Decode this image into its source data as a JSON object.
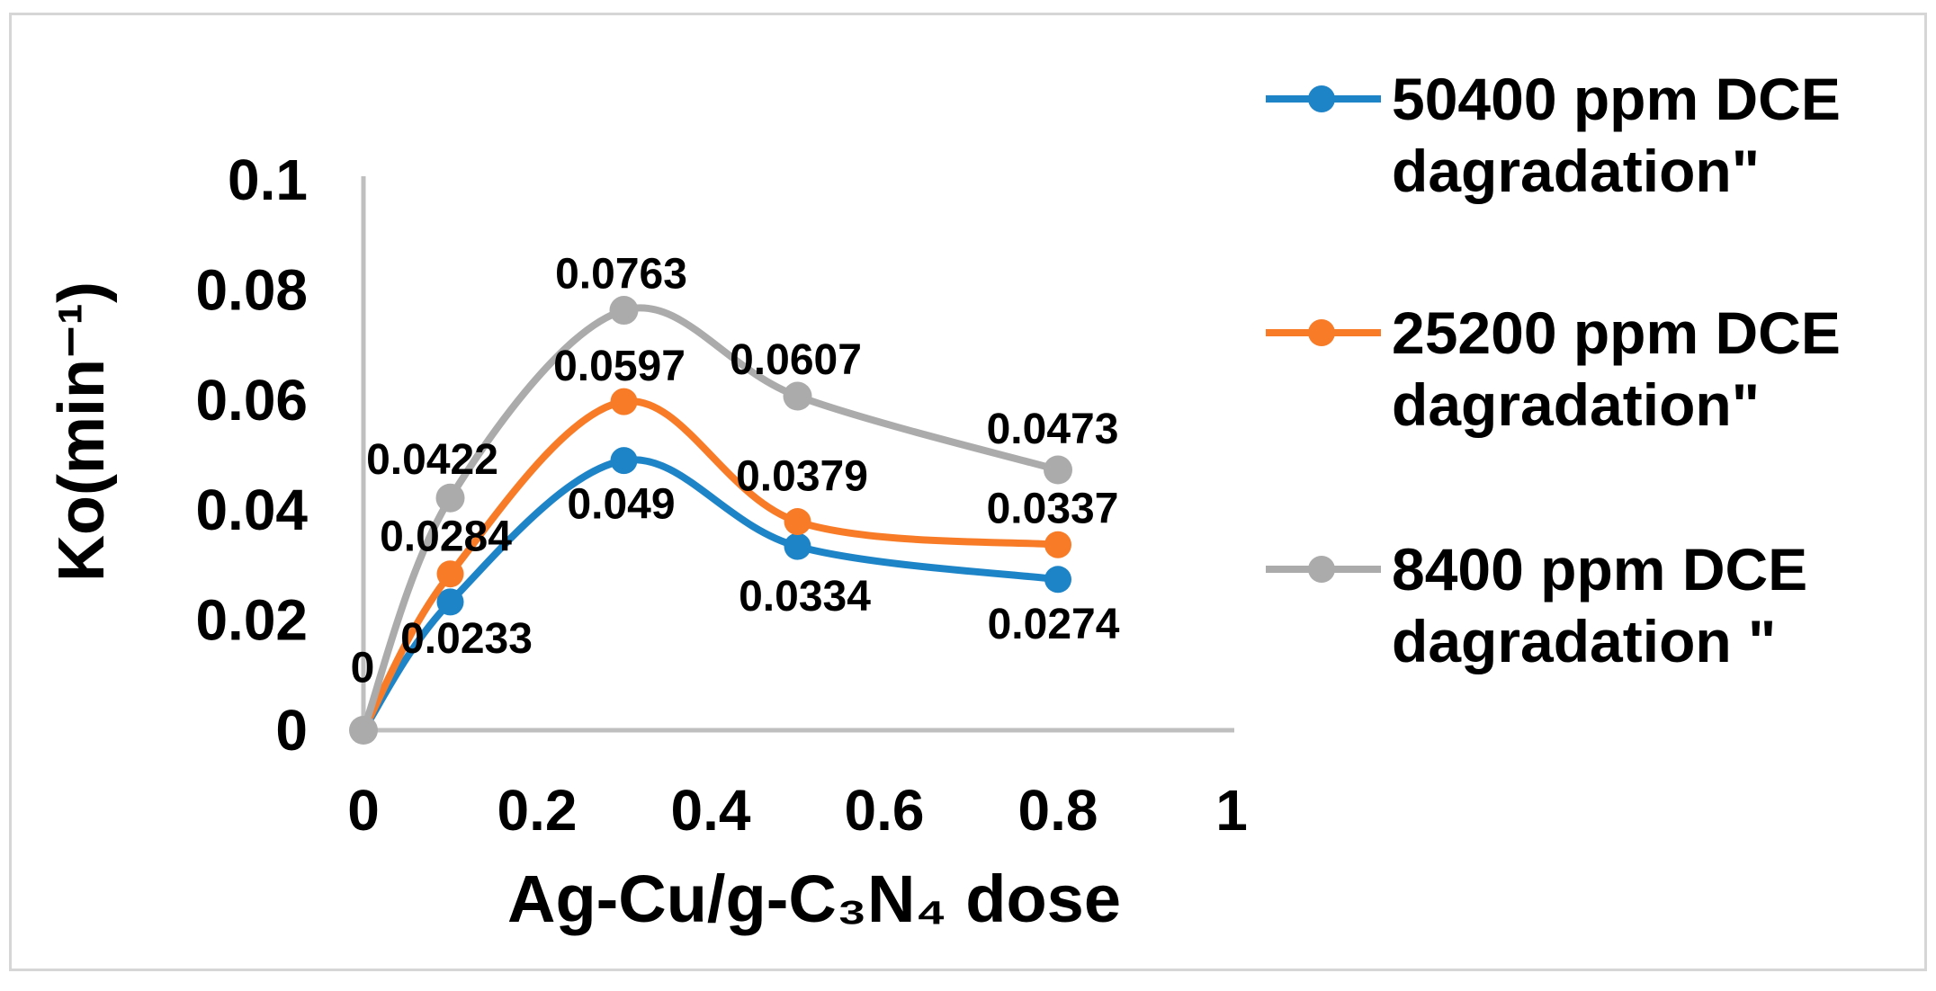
{
  "figure": {
    "background_color": "#ffffff",
    "frame_color": "#d6d6d6"
  },
  "chart_data": {
    "type": "line",
    "smooth": true,
    "grid": false,
    "x": [
      0,
      0.1,
      0.3,
      0.5,
      0.8
    ],
    "series": [
      {
        "name": "50400 ppm DCE dagradation\"",
        "color": "#1e84c8",
        "values": [
          0,
          0.0233,
          0.049,
          0.0334,
          0.0274
        ],
        "point_labels": [
          "",
          "0.0233",
          "0.049",
          "0.0334",
          "0.0274"
        ]
      },
      {
        "name": "25200 ppm DCE dagradation\"",
        "color": "#f87c28",
        "values": [
          0,
          0.0284,
          0.0597,
          0.0379,
          0.0337
        ],
        "point_labels": [
          "",
          "0.0284",
          "0.0597",
          "0.0379",
          "0.0337"
        ]
      },
      {
        "name": "8400 ppm DCE dagradation \"",
        "color": "#ababab",
        "values": [
          0,
          0.0422,
          0.0763,
          0.0607,
          0.0473
        ],
        "point_labels": [
          "0",
          "0.0422",
          "0.0763",
          "0.0607",
          "0.0473"
        ]
      }
    ],
    "xlabel": "Ag-Cu/g-C₃N₄ dose",
    "ylabel": "Ko(min⁻¹)",
    "xlim": [
      0,
      1
    ],
    "ylim": [
      0,
      0.1
    ],
    "x_ticks": [
      "0",
      "0.2",
      "0.4",
      "0.6",
      "0.8",
      "1"
    ],
    "y_ticks": [
      "0",
      "0.02",
      "0.04",
      "0.06",
      "0.08",
      "0.1"
    ],
    "axis_color": "#bfbfbf",
    "text_color": "#000000",
    "legend_position": "right"
  }
}
